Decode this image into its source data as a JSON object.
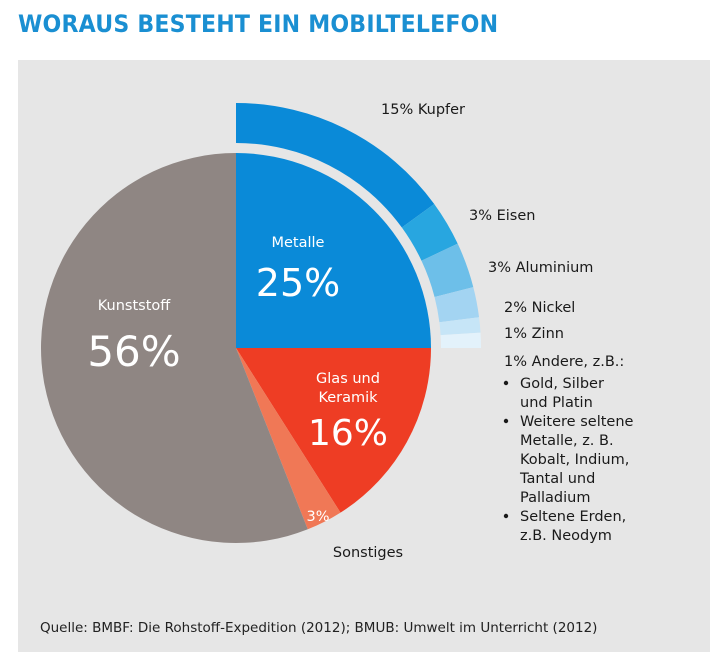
{
  "header": {
    "title": "WORAUS BESTEHT EIN MOBILTELEFON"
  },
  "footer": {
    "source": "Quelle: BMBF: Die Rohstoff-Expedition (2012); BMUB: Umwelt im Unterricht (2012)"
  },
  "chart_data": {
    "type": "pie",
    "title": "WORAUS BESTEHT EIN MOBILTELEFON",
    "slices": [
      {
        "name": "Metalle",
        "label": "Metalle",
        "value": 25,
        "display": "25%",
        "color": "#0a8ad8"
      },
      {
        "name": "Glas und Keramik",
        "label_lines": [
          "Glas und",
          "Keramik"
        ],
        "value": 16,
        "display": "16%",
        "color": "#ee3d24"
      },
      {
        "name": "Sonstiges",
        "label": "Sonstiges",
        "value": 3,
        "display": "3%",
        "color": "#f07856"
      },
      {
        "name": "Kunststoff",
        "label": "Kunststoff",
        "value": 56,
        "display": "56%",
        "color": "#8f8683"
      }
    ],
    "metal_breakdown": [
      {
        "label": "15% Kupfer",
        "value": 15,
        "color": "#0a8ad8"
      },
      {
        "label": "3% Eisen",
        "value": 3,
        "color": "#28a6e0"
      },
      {
        "label": "3% Aluminium",
        "value": 3,
        "color": "#6dbfe9"
      },
      {
        "label": "2% Nickel",
        "value": 2,
        "color": "#a3d4f2"
      },
      {
        "label": "1% Zinn",
        "value": 1,
        "color": "#c6e5f7"
      },
      {
        "label": "1% Andere, z.B.:",
        "value": 1,
        "color": "#e3f2fb"
      }
    ],
    "others_list": [
      [
        "Gold, Silber",
        "und Platin"
      ],
      [
        "Weitere seltene",
        "Metalle, z. B.",
        "Kobalt, Indium,",
        "Tantal und",
        "Palladium"
      ],
      [
        "Seltene Erden,",
        "z.B. Neodym"
      ]
    ]
  }
}
